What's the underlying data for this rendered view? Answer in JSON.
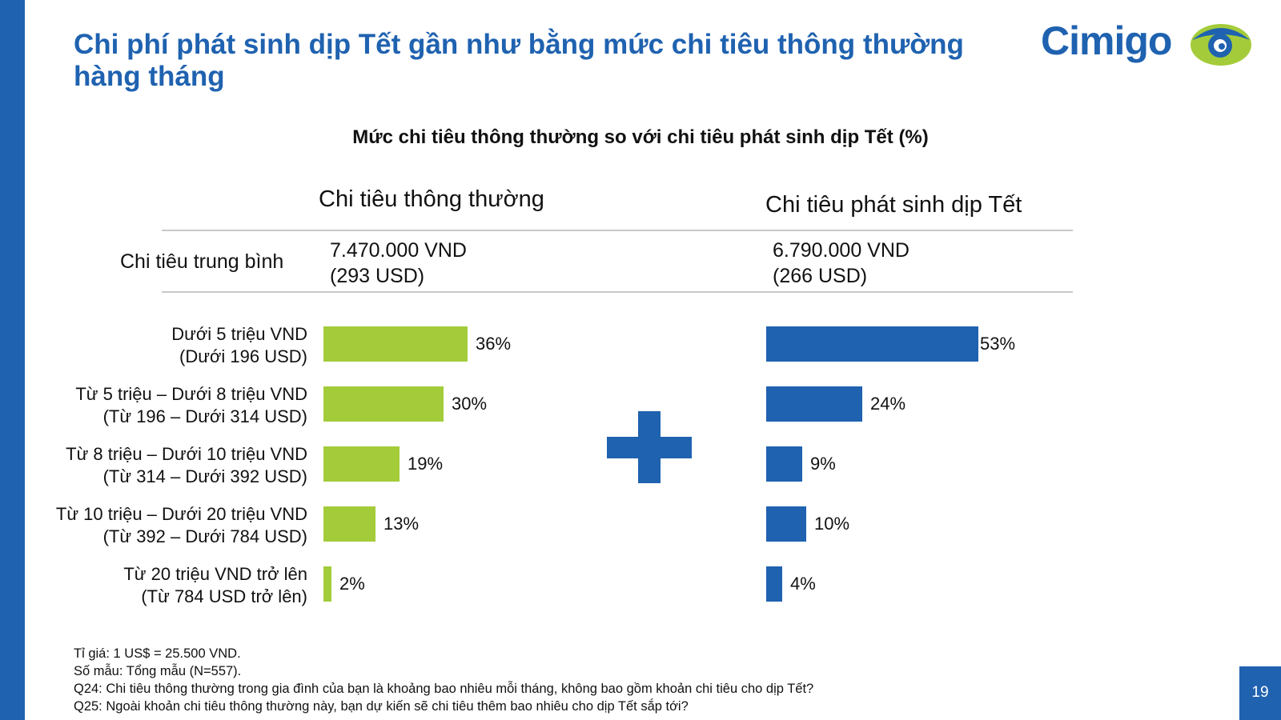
{
  "slide": {
    "title": "Chi phí phát sinh dịp Tết gần như bằng mức chi tiêu thông thường hàng tháng",
    "logo_text": "Cimigo",
    "page_number": "19"
  },
  "chart": {
    "subtitle": "Mức chi tiêu thông thường so với chi tiêu phát sinh dịp Tết (%)",
    "left_header": "Chi tiêu thông thường",
    "right_header": "Chi tiêu phát sinh dịp Tết",
    "avg_label": "Chi tiêu trung bình",
    "left_avg_line1": "7.470.000 VND",
    "left_avg_line2": "(293 USD)",
    "right_avg_line1": "6.790.000 VND",
    "right_avg_line2": "(266 USD)"
  },
  "chart_data": {
    "type": "bar",
    "orientation": "horizontal",
    "categories": [
      {
        "line1": "Dưới 5 triệu VND",
        "line2": "(Dưới 196 USD)"
      },
      {
        "line1": "Từ 5 triệu – Dưới 8 triệu VND",
        "line2": "(Từ 196 – Dưới 314 USD)"
      },
      {
        "line1": "Từ 8 triệu – Dưới 10 triệu VND",
        "line2": "(Từ 314 – Dưới 392 USD)"
      },
      {
        "line1": "Từ 10 triệu – Dưới 20 triệu VND",
        "line2": "(Từ 392 – Dưới 784 USD)"
      },
      {
        "line1": "Từ 20 triệu VND trở lên",
        "line2": "(Từ 784 USD trở lên)"
      }
    ],
    "series": [
      {
        "name": "Chi tiêu thông thường",
        "color": "#a4cc3a",
        "values": [
          36,
          30,
          19,
          13,
          2
        ],
        "labels": [
          "36%",
          "30%",
          "19%",
          "13%",
          "2%"
        ]
      },
      {
        "name": "Chi tiêu phát sinh dịp Tết",
        "color": "#1f62b0",
        "values": [
          53,
          24,
          9,
          10,
          4
        ],
        "labels": [
          "53%",
          "24%",
          "9%",
          "10%",
          "4%"
        ]
      }
    ],
    "xlim": [
      0,
      100
    ],
    "grid": false
  },
  "notes": [
    "Tỉ giá: 1 US$ = 25.500 VND.",
    "Số mẫu: Tổng mẫu (N=557).",
    "Q24: Chi tiêu thông thường trong gia đình của bạn là khoảng bao nhiêu mỗi tháng, không bao gồm khoản chi tiêu cho dịp Tết?",
    "Q25: Ngoài khoản chi tiêu thông thường này, bạn dự kiến sẽ chi tiêu thêm bao nhiêu cho dịp Tết sắp tới?"
  ],
  "colors": {
    "brand_blue": "#1f62b0",
    "brand_green": "#a4cc3a"
  }
}
